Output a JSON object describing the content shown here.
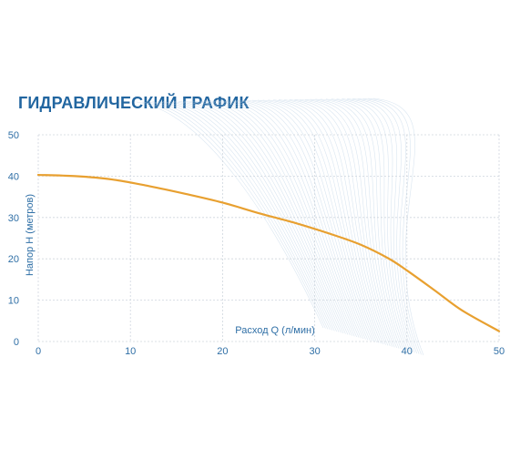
{
  "chart_data": {
    "type": "line",
    "title": "ГИДРАВЛИЧЕСКИЙ ГРАФИК",
    "xlabel": "Расход Q (л/мин)",
    "ylabel": "Напор Н (метров)",
    "xlim": [
      0,
      50
    ],
    "ylim": [
      0,
      50
    ],
    "x_ticks": [
      0,
      10,
      20,
      30,
      40,
      50
    ],
    "y_ticks": [
      0,
      10,
      20,
      30,
      40,
      50
    ],
    "grid": true,
    "legend": "none",
    "series": [
      {
        "color": "#e8a030",
        "x": [
          0,
          4,
          8,
          12,
          16,
          20,
          24,
          28,
          32,
          35,
          38,
          40,
          43,
          46,
          50
        ],
        "y": [
          40.3,
          40,
          39.2,
          37.6,
          35.7,
          33.6,
          31,
          28.6,
          25.8,
          23.4,
          20.1,
          17.2,
          12.4,
          7.5,
          2.5
        ]
      }
    ]
  },
  "colors": {
    "title": "#2266a0",
    "axis_text": "#2f6fa6",
    "grid": "#cfd6de",
    "curve": "#e8a030",
    "swoosh": "#b9cfe4"
  }
}
